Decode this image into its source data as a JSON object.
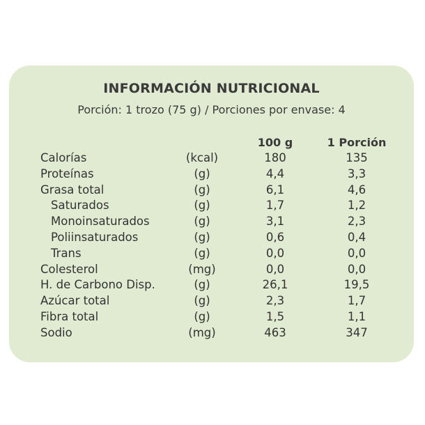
{
  "title": "INFORMACIÓN NUTRICIONAL",
  "serving": "Porción:  1 trozo (75 g) / Porciones por envase: 4",
  "headers": {
    "per100": "100 g",
    "perPortion": "1 Porción"
  },
  "rows": [
    {
      "name": "Calorías",
      "unit": "(kcal)",
      "per100": "180",
      "perPortion": "135"
    },
    {
      "name": "Proteínas",
      "unit": "(g)",
      "per100": "4,4",
      "perPortion": "3,3"
    },
    {
      "name": "Grasa total",
      "unit": "(g)",
      "per100": "6,1",
      "perPortion": "4,6"
    },
    {
      "name": "Saturados",
      "unit": "(g)",
      "per100": "1,7",
      "perPortion": "1,2"
    },
    {
      "name": "Monoinsaturados",
      "unit": "(g)",
      "per100": "3,1",
      "perPortion": "2,3"
    },
    {
      "name": "Poliinsaturados",
      "unit": "(g)",
      "per100": "0,6",
      "perPortion": "0,4"
    },
    {
      "name": "Trans",
      "unit": "(g)",
      "per100": "0,0",
      "perPortion": "0,0"
    },
    {
      "name": "Colesterol",
      "unit": "(mg)",
      "per100": "0,0",
      "perPortion": "0,0"
    },
    {
      "name": "H. de Carbono Disp.",
      "unit": "(g)",
      "per100": "26,1",
      "perPortion": "19,5"
    },
    {
      "name": "Azúcar total",
      "unit": "(g)",
      "per100": "2,3",
      "perPortion": "1,7"
    },
    {
      "name": "Fibra total",
      "unit": "(g)",
      "per100": "1,5",
      "perPortion": "1,1"
    },
    {
      "name": "Sodio",
      "unit": "(mg)",
      "per100": "463",
      "perPortion": "347"
    }
  ],
  "colors": {
    "panel": "#e1ebd2",
    "text": "#333333"
  }
}
